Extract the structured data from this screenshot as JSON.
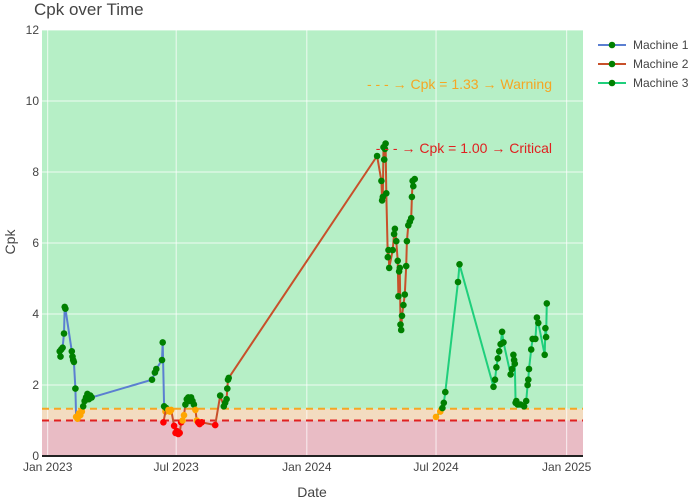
{
  "chart_data": {
    "type": "line",
    "title": "Cpk over Time",
    "xlabel": "Date",
    "ylabel": "Cpk",
    "xlim": [
      "2022-12-24",
      "2025-01-24"
    ],
    "ylim": [
      0,
      12
    ],
    "x_ticks": [
      {
        "date": "2023-01-01",
        "label": "Jan 2023"
      },
      {
        "date": "2023-07-01",
        "label": "Jul 2023"
      },
      {
        "date": "2024-01-01",
        "label": "Jan 2024"
      },
      {
        "date": "2024-07-01",
        "label": "Jul 2024"
      },
      {
        "date": "2025-01-01",
        "label": "Jan 2025"
      }
    ],
    "y_ticks": [
      0,
      2,
      4,
      6,
      8,
      10,
      12
    ],
    "grid": true,
    "legend_position": "top-right",
    "zones": [
      {
        "from": 0,
        "to": 1.0,
        "color": "#e9bcc5"
      },
      {
        "from": 1.0,
        "to": 1.33,
        "color": "#f3dcc0"
      },
      {
        "from": 1.33,
        "to": 12,
        "color": "#b6efc6"
      }
    ],
    "thresholds": [
      {
        "value": 1.33,
        "color": "#f5a623",
        "label": "- - - → Cpk = 1.33 → Warning"
      },
      {
        "value": 1.0,
        "color": "#e02020",
        "label": "- - - → Cpk = 1.00 → Critical"
      }
    ],
    "marker_colors": {
      "good": "#008000",
      "warning": "#ffa500",
      "critical": "#ff0000"
    },
    "series": [
      {
        "name": "Machine 1",
        "line_color": "#5b7fd1",
        "points": [
          [
            "2023-01-18",
            2.95
          ],
          [
            "2023-01-19",
            2.8
          ],
          [
            "2023-01-20",
            3.0
          ],
          [
            "2023-01-22",
            3.05
          ],
          [
            "2023-01-24",
            3.45
          ],
          [
            "2023-01-25",
            4.2
          ],
          [
            "2023-01-26",
            4.15
          ],
          [
            "2023-02-04",
            2.95
          ],
          [
            "2023-02-05",
            2.8
          ],
          [
            "2023-02-06",
            2.7
          ],
          [
            "2023-02-07",
            2.65
          ],
          [
            "2023-02-09",
            1.9
          ],
          [
            "2023-02-10",
            1.1
          ],
          [
            "2023-02-12",
            1.05
          ],
          [
            "2023-02-14",
            1.2
          ],
          [
            "2023-02-16",
            1.15
          ],
          [
            "2023-02-18",
            1.25
          ],
          [
            "2023-02-20",
            1.4
          ],
          [
            "2023-02-22",
            1.55
          ],
          [
            "2023-02-24",
            1.65
          ],
          [
            "2023-02-26",
            1.75
          ],
          [
            "2023-02-28",
            1.6
          ],
          [
            "2023-03-02",
            1.7
          ],
          [
            "2023-03-04",
            1.65
          ],
          [
            "2023-05-28",
            2.15
          ],
          [
            "2023-06-01",
            2.35
          ],
          [
            "2023-06-03",
            2.45
          ],
          [
            "2023-06-11",
            2.7
          ],
          [
            "2023-06-12",
            3.2
          ],
          [
            "2023-06-14",
            1.4
          ],
          [
            "2023-06-16",
            1.25
          ]
        ]
      },
      {
        "name": "Machine 2",
        "line_color": "#c8502a",
        "points": [
          [
            "2023-06-13",
            0.95
          ],
          [
            "2023-06-17",
            1.35
          ],
          [
            "2023-06-20",
            1.3
          ],
          [
            "2023-06-22",
            1.25
          ],
          [
            "2023-06-24",
            1.3
          ],
          [
            "2023-06-28",
            0.85
          ],
          [
            "2023-06-30",
            0.65
          ],
          [
            "2023-07-02",
            0.7
          ],
          [
            "2023-07-04",
            0.62
          ],
          [
            "2023-07-06",
            0.65
          ],
          [
            "2023-07-08",
            0.95
          ],
          [
            "2023-07-10",
            1.0
          ],
          [
            "2023-07-12",
            1.15
          ],
          [
            "2023-07-14",
            1.45
          ],
          [
            "2023-07-16",
            1.6
          ],
          [
            "2023-07-18",
            1.65
          ],
          [
            "2023-07-20",
            1.55
          ],
          [
            "2023-07-22",
            1.65
          ],
          [
            "2023-07-24",
            1.55
          ],
          [
            "2023-07-26",
            1.45
          ],
          [
            "2023-07-28",
            1.3
          ],
          [
            "2023-07-30",
            1.0
          ],
          [
            "2023-08-01",
            0.95
          ],
          [
            "2023-08-03",
            0.9
          ],
          [
            "2023-08-06",
            0.95
          ],
          [
            "2023-08-25",
            0.87
          ],
          [
            "2023-09-01",
            1.7
          ],
          [
            "2023-09-06",
            1.4
          ],
          [
            "2023-09-08",
            1.5
          ],
          [
            "2023-09-10",
            1.6
          ],
          [
            "2023-09-11",
            1.9
          ],
          [
            "2023-09-12",
            2.15
          ],
          [
            "2023-09-13",
            2.2
          ],
          [
            "2024-04-09",
            8.45
          ],
          [
            "2024-04-15",
            7.75
          ],
          [
            "2024-04-16",
            7.2
          ],
          [
            "2024-04-17",
            7.3
          ],
          [
            "2024-04-18",
            8.7
          ],
          [
            "2024-04-19",
            8.35
          ],
          [
            "2024-04-20",
            8.65
          ],
          [
            "2024-04-21",
            8.8
          ],
          [
            "2024-04-22",
            7.4
          ],
          [
            "2024-04-24",
            5.6
          ],
          [
            "2024-04-25",
            5.8
          ],
          [
            "2024-04-26",
            5.3
          ],
          [
            "2024-05-01",
            5.8
          ],
          [
            "2024-05-03",
            6.25
          ],
          [
            "2024-05-04",
            6.4
          ],
          [
            "2024-05-06",
            6.05
          ],
          [
            "2024-05-08",
            5.5
          ],
          [
            "2024-05-09",
            4.5
          ],
          [
            "2024-05-10",
            5.2
          ],
          [
            "2024-05-11",
            5.3
          ],
          [
            "2024-05-12",
            3.7
          ],
          [
            "2024-05-13",
            3.55
          ],
          [
            "2024-05-14",
            3.95
          ],
          [
            "2024-05-16",
            4.25
          ],
          [
            "2024-05-18",
            4.55
          ],
          [
            "2024-05-20",
            5.35
          ],
          [
            "2024-05-21",
            6.05
          ],
          [
            "2024-05-23",
            6.5
          ],
          [
            "2024-05-25",
            6.6
          ],
          [
            "2024-05-27",
            6.7
          ],
          [
            "2024-05-28",
            7.3
          ],
          [
            "2024-05-29",
            7.75
          ],
          [
            "2024-05-30",
            7.6
          ],
          [
            "2024-06-01",
            7.8
          ]
        ]
      },
      {
        "name": "Machine 3",
        "line_color": "#1fcf7c",
        "points": [
          [
            "2024-07-01",
            1.1
          ],
          [
            "2024-07-07",
            1.25
          ],
          [
            "2024-07-10",
            1.35
          ],
          [
            "2024-07-12",
            1.5
          ],
          [
            "2024-07-14",
            1.8
          ],
          [
            "2024-08-01",
            4.9
          ],
          [
            "2024-08-03",
            5.4
          ],
          [
            "2024-09-20",
            1.95
          ],
          [
            "2024-09-22",
            2.15
          ],
          [
            "2024-09-24",
            2.5
          ],
          [
            "2024-09-26",
            2.75
          ],
          [
            "2024-09-28",
            2.95
          ],
          [
            "2024-09-30",
            3.15
          ],
          [
            "2024-10-02",
            3.5
          ],
          [
            "2024-10-04",
            3.2
          ],
          [
            "2024-10-14",
            2.3
          ],
          [
            "2024-10-16",
            2.45
          ],
          [
            "2024-10-18",
            2.85
          ],
          [
            "2024-10-19",
            2.7
          ],
          [
            "2024-10-20",
            2.6
          ],
          [
            "2024-10-21",
            1.5
          ],
          [
            "2024-10-22",
            1.55
          ],
          [
            "2024-10-24",
            1.45
          ],
          [
            "2024-10-28",
            1.45
          ],
          [
            "2024-11-02",
            1.4
          ],
          [
            "2024-11-05",
            1.55
          ],
          [
            "2024-11-07",
            2.0
          ],
          [
            "2024-11-08",
            2.15
          ],
          [
            "2024-11-09",
            2.45
          ],
          [
            "2024-11-12",
            3.0
          ],
          [
            "2024-11-14",
            3.3
          ],
          [
            "2024-11-18",
            3.3
          ],
          [
            "2024-11-20",
            3.9
          ],
          [
            "2024-11-22",
            3.75
          ],
          [
            "2024-12-01",
            2.85
          ],
          [
            "2024-12-02",
            3.6
          ],
          [
            "2024-12-03",
            3.35
          ],
          [
            "2024-12-04",
            4.3
          ]
        ]
      }
    ]
  }
}
